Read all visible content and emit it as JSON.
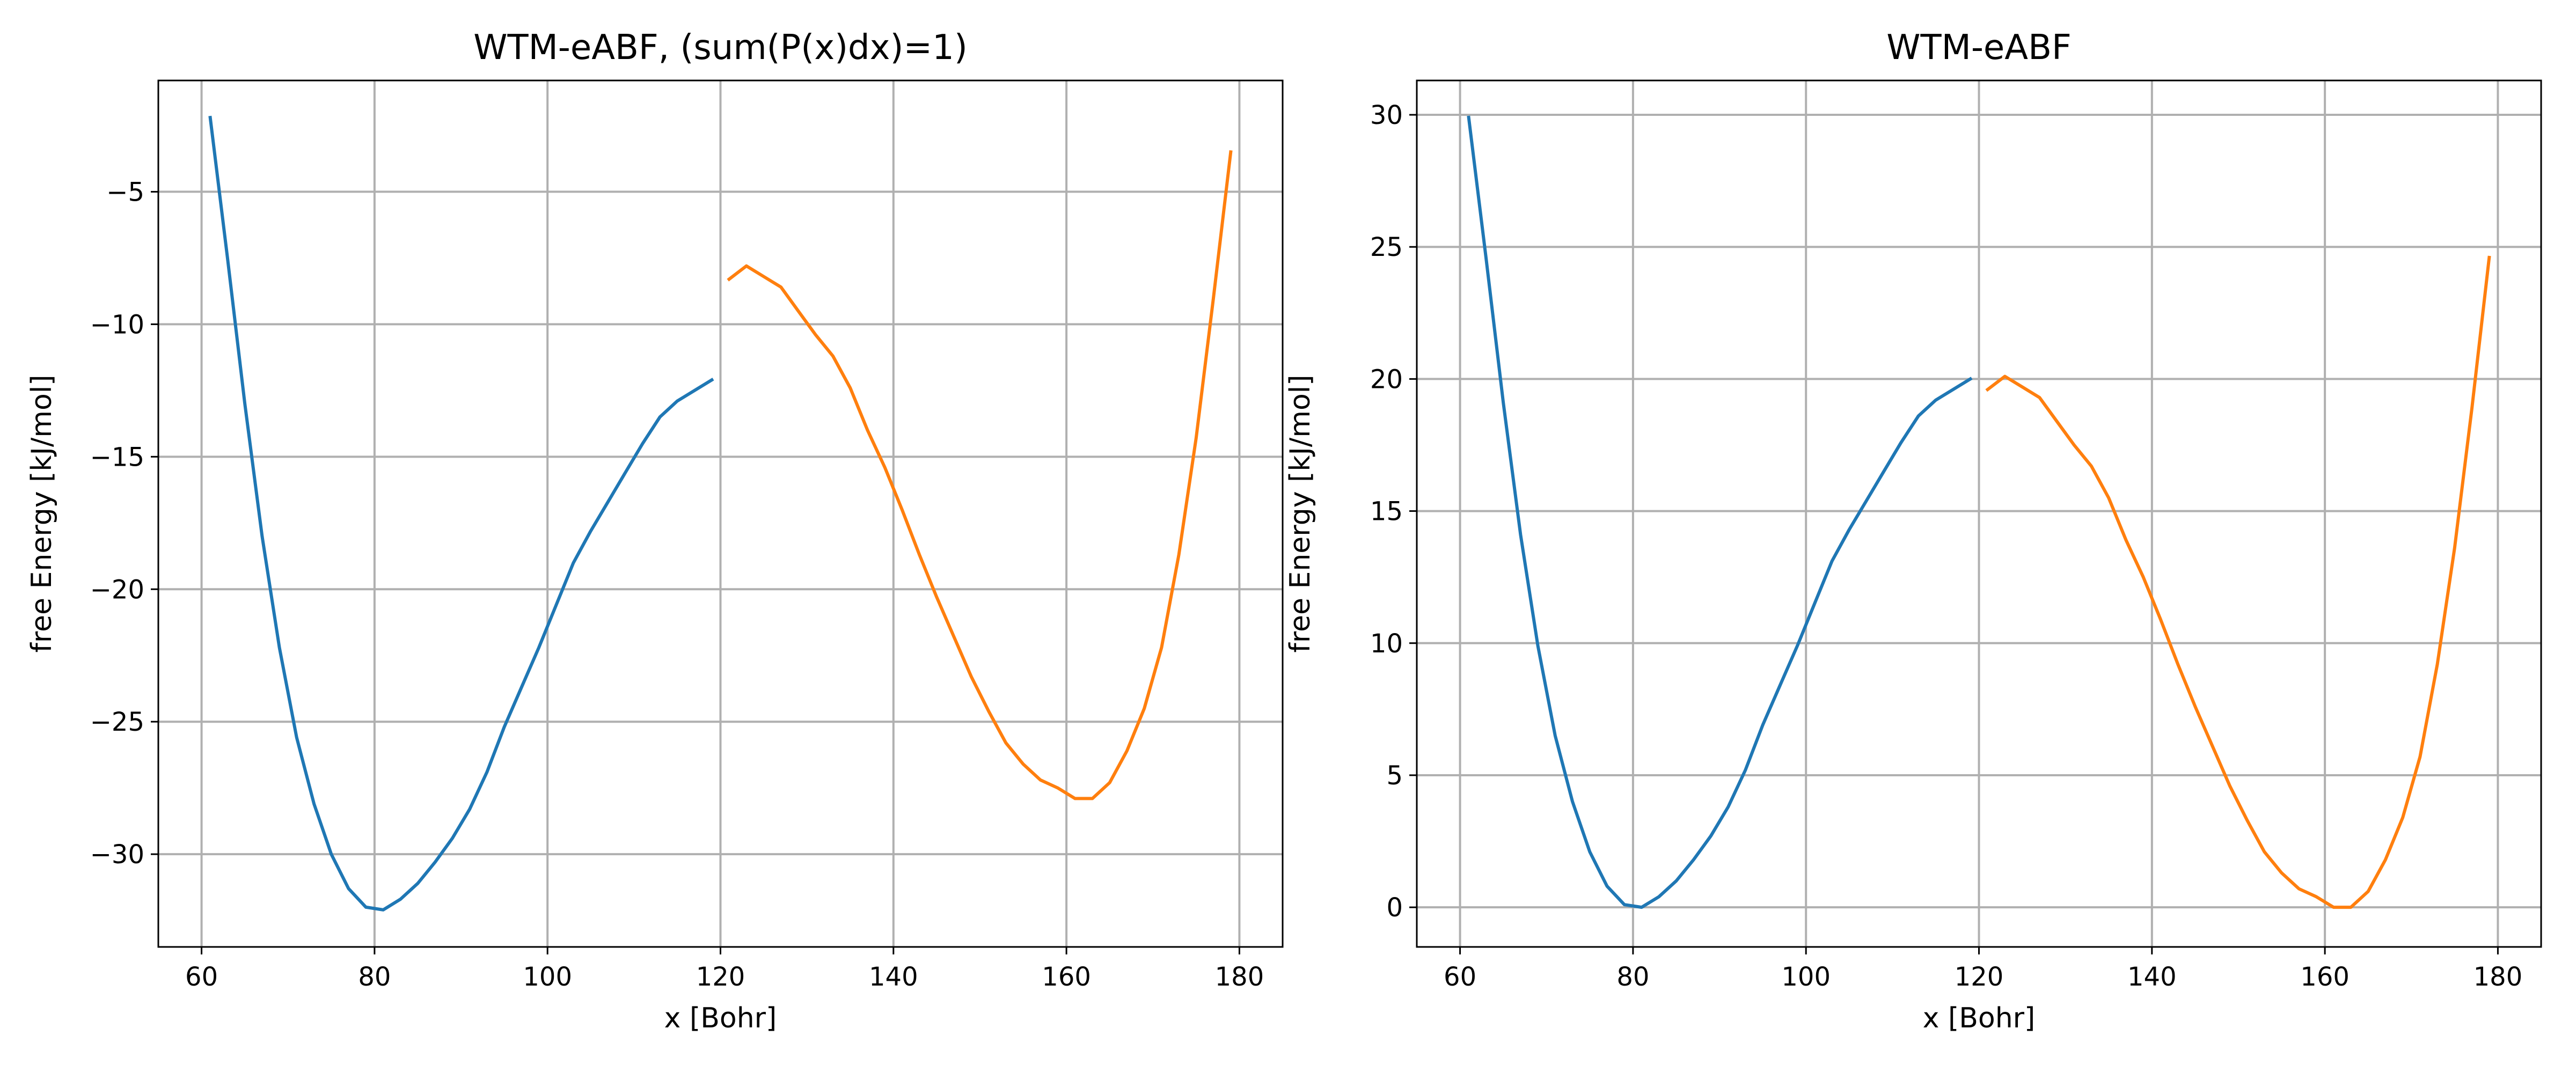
{
  "colors": {
    "series_1": "#1f77b4",
    "series_2": "#ff7f0e"
  },
  "chart_data": [
    {
      "type": "line",
      "title": "WTM-eABF, (sum(P(x)dx)=1)",
      "xlabel": "x [Bohr]",
      "ylabel": "free Energy [kJ/mol]",
      "xlim": [
        55,
        185
      ],
      "ylim": [
        -33.5,
        -0.8
      ],
      "xticks": [
        60,
        80,
        100,
        120,
        140,
        160,
        180
      ],
      "yticks": [
        -30,
        -25,
        -20,
        -15,
        -10,
        -5
      ],
      "xtick_labels": [
        "60",
        "80",
        "100",
        "120",
        "140",
        "160",
        "180"
      ],
      "ytick_labels": [
        "−30",
        "−25",
        "−20",
        "−15",
        "−10",
        "−5"
      ],
      "grid": true,
      "series": [
        {
          "color": "#1f77b4",
          "x": [
            61,
            63,
            65,
            67,
            69,
            71,
            73,
            75,
            77,
            79,
            81,
            83,
            85,
            87,
            89,
            91,
            93,
            95,
            97,
            99,
            101,
            103,
            105,
            107,
            109,
            111,
            113,
            115,
            117,
            119
          ],
          "y": [
            -2.2,
            -7.5,
            -13.0,
            -18.0,
            -22.2,
            -25.6,
            -28.1,
            -30.0,
            -31.3,
            -32.0,
            -32.1,
            -31.7,
            -31.1,
            -30.3,
            -29.4,
            -28.3,
            -26.9,
            -25.2,
            -23.7,
            -22.2,
            -20.6,
            -19.0,
            -17.8,
            -16.7,
            -15.6,
            -14.5,
            -13.5,
            -12.9,
            -12.5,
            -12.1
          ]
        },
        {
          "color": "#ff7f0e",
          "x": [
            121,
            123,
            125,
            127,
            129,
            131,
            133,
            135,
            137,
            139,
            141,
            143,
            145,
            147,
            149,
            151,
            153,
            155,
            157,
            159,
            161,
            163,
            165,
            167,
            169,
            171,
            173,
            175,
            177,
            179
          ],
          "y": [
            -8.3,
            -7.8,
            -8.2,
            -8.6,
            -9.5,
            -10.4,
            -11.2,
            -12.4,
            -14.0,
            -15.4,
            -17.0,
            -18.7,
            -20.3,
            -21.8,
            -23.3,
            -24.6,
            -25.8,
            -26.6,
            -27.2,
            -27.5,
            -27.9,
            -27.9,
            -27.3,
            -26.1,
            -24.5,
            -22.2,
            -18.7,
            -14.3,
            -9.0,
            -3.5
          ]
        }
      ]
    },
    {
      "type": "line",
      "title": "WTM-eABF",
      "xlabel": "x [Bohr]",
      "ylabel": "free Energy [kJ/mol]",
      "xlim": [
        55,
        185
      ],
      "ylim": [
        -1.5,
        31.3
      ],
      "xticks": [
        60,
        80,
        100,
        120,
        140,
        160,
        180
      ],
      "yticks": [
        0,
        5,
        10,
        15,
        20,
        25,
        30
      ],
      "xtick_labels": [
        "60",
        "80",
        "100",
        "120",
        "140",
        "160",
        "180"
      ],
      "ytick_labels": [
        "0",
        "5",
        "10",
        "15",
        "20",
        "25",
        "30"
      ],
      "grid": true,
      "series": [
        {
          "color": "#1f77b4",
          "x": [
            61,
            63,
            65,
            67,
            69,
            71,
            73,
            75,
            77,
            79,
            81,
            83,
            85,
            87,
            89,
            91,
            93,
            95,
            97,
            99,
            101,
            103,
            105,
            107,
            109,
            111,
            113,
            115,
            117,
            119
          ],
          "y": [
            29.9,
            24.6,
            19.1,
            14.1,
            9.9,
            6.5,
            4.0,
            2.1,
            0.8,
            0.1,
            0.0,
            0.4,
            1.0,
            1.8,
            2.7,
            3.8,
            5.2,
            6.9,
            8.4,
            9.9,
            11.5,
            13.1,
            14.3,
            15.4,
            16.5,
            17.6,
            18.6,
            19.2,
            19.6,
            20.0
          ]
        },
        {
          "color": "#ff7f0e",
          "x": [
            121,
            123,
            125,
            127,
            129,
            131,
            133,
            135,
            137,
            139,
            141,
            143,
            145,
            147,
            149,
            151,
            153,
            155,
            157,
            159,
            161,
            163,
            165,
            167,
            169,
            171,
            173,
            175,
            177,
            179
          ],
          "y": [
            19.6,
            20.1,
            19.7,
            19.3,
            18.4,
            17.5,
            16.7,
            15.5,
            13.9,
            12.5,
            10.9,
            9.2,
            7.6,
            6.1,
            4.6,
            3.3,
            2.1,
            1.3,
            0.7,
            0.4,
            0.0,
            0.0,
            0.6,
            1.8,
            3.4,
            5.7,
            9.2,
            13.6,
            18.9,
            24.6
          ]
        }
      ]
    }
  ]
}
